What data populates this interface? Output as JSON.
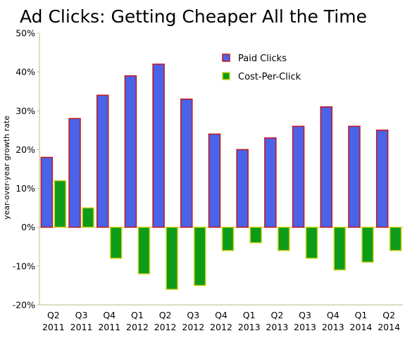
{
  "chart_data": {
    "type": "bar",
    "title": "Ad Clicks: Getting Cheaper All the Time",
    "xlabel": "",
    "ylabel": "year-over-year growth rate",
    "ylim": [
      -20,
      50
    ],
    "yticks": [
      -20,
      -10,
      0,
      10,
      20,
      30,
      40,
      50
    ],
    "ytick_labels": [
      "-20%",
      "-10%",
      "0%",
      "10%",
      "20%",
      "30%",
      "40%",
      "50%"
    ],
    "categories": [
      {
        "quarter": "Q2",
        "year": "2011"
      },
      {
        "quarter": "Q3",
        "year": "2011"
      },
      {
        "quarter": "Q4",
        "year": "2011"
      },
      {
        "quarter": "Q1",
        "year": "2012"
      },
      {
        "quarter": "Q2",
        "year": "2012"
      },
      {
        "quarter": "Q3",
        "year": "2012"
      },
      {
        "quarter": "Q4",
        "year": "2012"
      },
      {
        "quarter": "Q1",
        "year": "2013"
      },
      {
        "quarter": "Q2",
        "year": "2013"
      },
      {
        "quarter": "Q3",
        "year": "2013"
      },
      {
        "quarter": "Q4",
        "year": "2013"
      },
      {
        "quarter": "Q1",
        "year": "2014"
      },
      {
        "quarter": "Q2",
        "year": "2014"
      }
    ],
    "series": [
      {
        "name": "Paid Clicks",
        "fill": "#4a63e8",
        "stroke": "#c4161c",
        "values": [
          18,
          28,
          34,
          39,
          42,
          33,
          24,
          20,
          23,
          26,
          31,
          26,
          25
        ]
      },
      {
        "name": "Cost-Per-Click",
        "fill": "#0d9b1a",
        "stroke": "#d2d21a",
        "values": [
          12,
          5,
          -8,
          -12,
          -16,
          -15,
          -6,
          -4,
          -6,
          -8,
          -11,
          -9,
          -6
        ]
      }
    ],
    "grid": false,
    "legend": "top-right"
  }
}
